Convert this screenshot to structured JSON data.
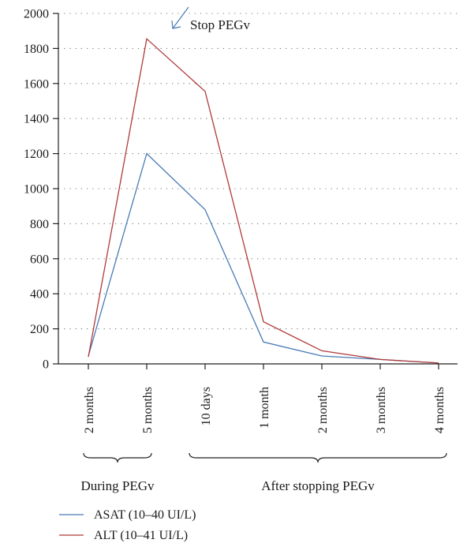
{
  "chart_data": {
    "type": "line",
    "categories": [
      "2 months",
      "5 months",
      "10 days",
      "1 month",
      "2 months",
      "3 months",
      "4 months"
    ],
    "groups": [
      {
        "label": "During PEGv",
        "categories": [
          "2 months",
          "5 months"
        ]
      },
      {
        "label": "After stopping PEGv",
        "categories": [
          "10 days",
          "1 month",
          "2 months",
          "3 months",
          "4 months"
        ]
      }
    ],
    "series": [
      {
        "name": "ASAT (10–40 UI/L)",
        "color": "#4a7ab5",
        "values": [
          45,
          1200,
          880,
          125,
          45,
          25,
          5
        ]
      },
      {
        "name": "ALT (10–41 UI/L)",
        "color": "#b03a3a",
        "values": [
          40,
          1855,
          1555,
          240,
          75,
          25,
          5
        ]
      }
    ],
    "ylim": [
      0,
      2000
    ],
    "yticks": [
      0,
      200,
      400,
      600,
      800,
      1000,
      1200,
      1400,
      1600,
      1800,
      2000
    ],
    "grid": "horizontal dotted",
    "legend_position": "bottom-left",
    "annotation": {
      "text": "Stop PEGv",
      "color": "#4a7ab5"
    }
  }
}
